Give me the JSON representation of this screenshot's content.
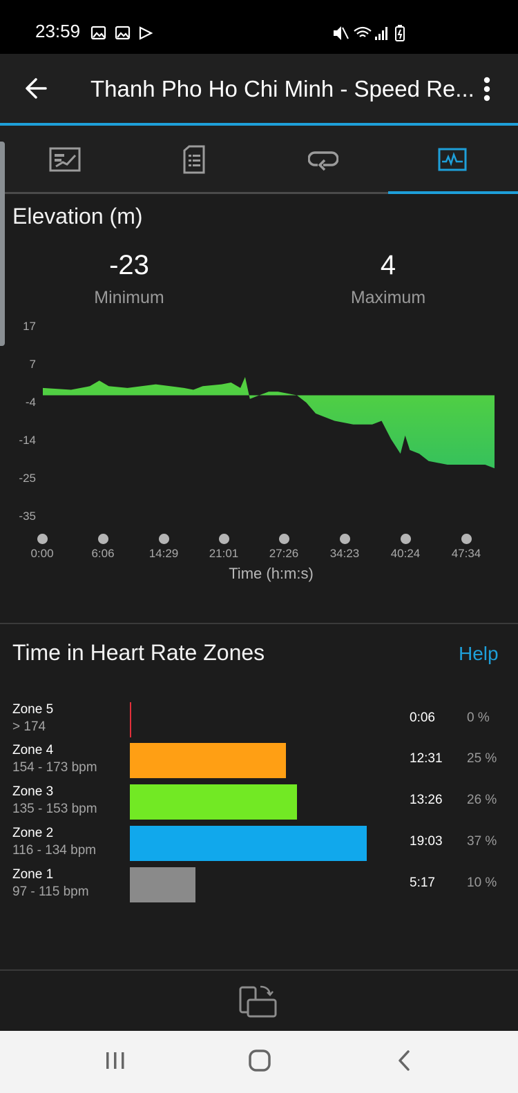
{
  "status": {
    "time": "23:59"
  },
  "header": {
    "title": "Thanh Pho Ho Chi Minh - Speed Re..."
  },
  "tabs": [
    "stats",
    "details",
    "laps",
    "charts"
  ],
  "elevation": {
    "title": "Elevation (m)",
    "min_value": "-23",
    "min_label": "Minimum",
    "max_value": "4",
    "max_label": "Maximum",
    "y_ticks": [
      "17",
      "7",
      "-4",
      "-14",
      "-25",
      "-35"
    ],
    "x_ticks": [
      "0:00",
      "6:06",
      "14:29",
      "21:01",
      "27:26",
      "34:23",
      "40:24",
      "47:34"
    ],
    "x_label": "Time (h:m:s)",
    "fill_color": "#4cd043"
  },
  "chart_data": {
    "type": "area",
    "title": "Elevation (m)",
    "xlabel": "Time (h:m:s)",
    "ylabel": "",
    "ylim": [
      -35,
      17
    ],
    "x_tick_labels": [
      "0:00",
      "6:06",
      "14:29",
      "21:01",
      "27:26",
      "34:23",
      "40:24",
      "47:34"
    ],
    "series": [
      {
        "x_minutes": [
          0,
          3,
          5,
          6,
          7,
          9,
          12,
          15,
          16,
          17,
          19,
          20,
          21,
          21.5,
          22,
          24,
          25,
          27,
          28,
          29,
          30,
          31,
          33,
          35,
          36,
          37,
          38,
          38.5,
          39,
          40,
          41,
          43,
          45,
          47,
          48
        ],
        "values": [
          0,
          -0.5,
          0.5,
          2,
          0.5,
          0,
          1,
          0,
          -0.5,
          0.5,
          1,
          1.5,
          0,
          3,
          -3,
          -1,
          -1,
          -2,
          -4,
          -7,
          -8,
          -9,
          -10,
          -10,
          -9,
          -14,
          -18,
          -13,
          -17,
          -18,
          -20,
          -21,
          -21,
          -21,
          -22
        ]
      }
    ],
    "min": -23,
    "max": 4
  },
  "hr_zones": {
    "title": "Time in Heart Rate Zones",
    "help": "Help",
    "zones": [
      {
        "name": "Zone 5",
        "range": "> 174",
        "time": "0:06",
        "pct": "0 %",
        "pct_value": 0,
        "color": "#e0303a"
      },
      {
        "name": "Zone 4",
        "range": "154 - 173 bpm",
        "time": "12:31",
        "pct": "25 %",
        "pct_value": 25,
        "color": "#ff9f14"
      },
      {
        "name": "Zone 3",
        "range": "135 - 153 bpm",
        "time": "13:26",
        "pct": "26 %",
        "pct_value": 26,
        "color": "#72e924"
      },
      {
        "name": "Zone 2",
        "range": "116 - 134 bpm",
        "time": "19:03",
        "pct": "37 %",
        "pct_value": 37,
        "color": "#11a8ec"
      },
      {
        "name": "Zone 1",
        "range": "97 - 115 bpm",
        "time": "5:17",
        "pct": "10 %",
        "pct_value": 10,
        "color": "#8a8a8a"
      }
    ]
  },
  "colors": {
    "accent": "#1e9fd9",
    "background": "#1c1c1c"
  }
}
